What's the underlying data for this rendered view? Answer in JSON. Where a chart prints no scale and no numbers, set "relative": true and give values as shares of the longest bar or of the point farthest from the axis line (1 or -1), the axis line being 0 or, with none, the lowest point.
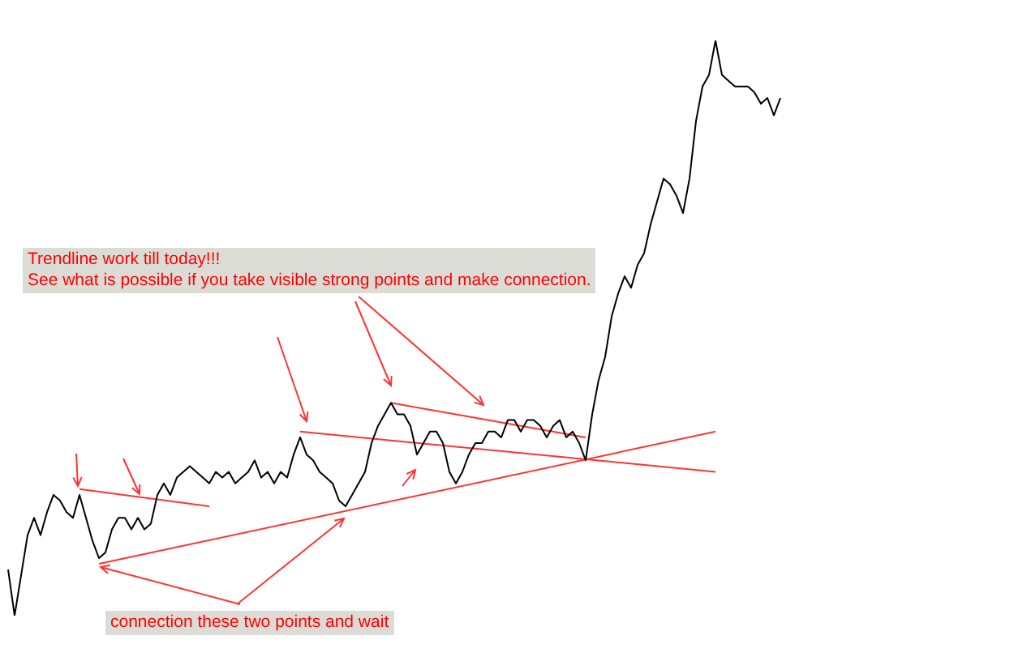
{
  "chart_data": {
    "type": "line",
    "relative": true,
    "legend": false,
    "marker": "none",
    "categories": [
      null,
      null,
      null,
      null,
      null,
      null,
      null,
      null,
      null,
      null,
      null,
      null,
      null,
      null,
      null,
      null,
      null,
      null,
      null,
      null,
      null,
      null,
      null,
      null,
      null,
      null,
      null,
      null,
      null,
      null,
      null,
      null,
      null,
      null,
      null,
      null,
      null,
      null,
      null,
      null,
      null,
      null,
      null,
      null,
      null,
      null,
      null,
      null,
      null,
      null,
      null,
      null,
      null,
      null,
      null,
      null,
      null,
      null,
      null,
      null,
      null,
      null,
      null,
      null,
      null,
      null,
      null,
      null,
      null,
      null,
      null,
      null,
      null,
      null,
      null,
      null,
      null,
      null,
      null,
      null,
      null,
      null,
      null,
      null,
      null,
      null,
      null,
      null,
      null,
      null,
      null,
      null,
      null,
      null,
      null,
      null,
      null,
      null,
      null,
      null,
      null,
      null,
      null,
      null,
      null,
      null,
      null,
      null,
      null,
      null,
      null,
      null,
      null,
      null,
      null,
      null,
      null,
      null,
      null,
      null
    ],
    "series": [
      {
        "color": "#000000",
        "values": [
          0.08,
          0,
          0.07,
          0.14,
          0.17,
          0.14,
          0.18,
          0.21,
          0.2,
          0.18,
          0.17,
          0.21,
          0.17,
          0.13,
          0.1,
          0.11,
          0.15,
          0.17,
          0.17,
          0.15,
          0.17,
          0.15,
          0.16,
          0.21,
          0.23,
          0.21,
          0.24,
          0.25,
          0.26,
          0.25,
          0.24,
          0.23,
          0.25,
          0.24,
          0.25,
          0.23,
          0.24,
          0.25,
          0.27,
          0.24,
          0.25,
          0.23,
          0.25,
          0.24,
          0.28,
          0.31,
          0.28,
          0.27,
          0.25,
          0.24,
          0.23,
          0.2,
          0.19,
          0.21,
          0.23,
          0.25,
          0.3,
          0.33,
          0.35,
          0.37,
          0.35,
          0.35,
          0.33,
          0.28,
          0.3,
          0.32,
          0.32,
          0.3,
          0.25,
          0.23,
          0.25,
          0.28,
          0.3,
          0.3,
          0.32,
          0.32,
          0.31,
          0.34,
          0.34,
          0.32,
          0.34,
          0.34,
          0.33,
          0.31,
          0.33,
          0.34,
          0.31,
          0.32,
          0.3,
          0.27,
          0.35,
          0.41,
          0.45,
          0.52,
          0.56,
          0.59,
          0.57,
          0.61,
          0.63,
          0.68,
          0.72,
          0.76,
          0.75,
          0.73,
          0.7,
          0.76,
          0.86,
          0.92,
          0.94,
          1,
          0.94,
          0.93,
          0.92,
          0.92,
          0.92,
          0.91,
          0.89,
          0.9,
          0.87,
          0.9
        ]
      },
      {
        "color": "#ff3333",
        "values": [
          null,
          null,
          null,
          null,
          null,
          null,
          null,
          null,
          null,
          null,
          null,
          0.22,
          null,
          null,
          null,
          null,
          null,
          null,
          null,
          null,
          null,
          null,
          null,
          null,
          null,
          null,
          null,
          null,
          null,
          null,
          null,
          0.19,
          null,
          null,
          null,
          null,
          null,
          null,
          null,
          null,
          null,
          null,
          null,
          null,
          null,
          null,
          null,
          null,
          null,
          null,
          null,
          null,
          null,
          null,
          null,
          null,
          null,
          null,
          null,
          null,
          null,
          null,
          null,
          null,
          null,
          null,
          null,
          null,
          null,
          null,
          null,
          null,
          null,
          null,
          null,
          null,
          null,
          null,
          null,
          null,
          null,
          null,
          null,
          null,
          null,
          null,
          null,
          null,
          null,
          null,
          null,
          null,
          null,
          null,
          null,
          null,
          null,
          null,
          null,
          null,
          null,
          null,
          null,
          null,
          null,
          null,
          null,
          null,
          null,
          null,
          null,
          null,
          null,
          null,
          null,
          null,
          null,
          null,
          null,
          null
        ]
      },
      {
        "color": "#ff3333",
        "values": [
          null,
          null,
          null,
          null,
          null,
          null,
          null,
          null,
          null,
          null,
          null,
          null,
          null,
          null,
          0.09,
          null,
          null,
          null,
          null,
          null,
          null,
          null,
          null,
          null,
          null,
          null,
          null,
          null,
          null,
          null,
          null,
          null,
          null,
          null,
          null,
          null,
          null,
          null,
          null,
          null,
          null,
          null,
          null,
          null,
          null,
          null,
          null,
          null,
          null,
          null,
          null,
          null,
          null,
          null,
          null,
          null,
          null,
          null,
          null,
          null,
          null,
          null,
          null,
          null,
          null,
          null,
          null,
          null,
          null,
          null,
          null,
          null,
          null,
          null,
          null,
          null,
          null,
          null,
          null,
          null,
          null,
          null,
          null,
          null,
          null,
          null,
          null,
          null,
          null,
          null,
          null,
          null,
          null,
          null,
          null,
          null,
          null,
          null,
          null,
          null,
          null,
          null,
          null,
          null,
          null,
          null,
          null,
          null,
          null,
          0.32,
          null,
          null,
          null,
          null,
          null,
          null,
          null,
          null,
          null,
          null
        ]
      },
      {
        "color": "#ff3333",
        "values": [
          null,
          null,
          null,
          null,
          null,
          null,
          null,
          null,
          null,
          null,
          null,
          null,
          null,
          null,
          null,
          null,
          null,
          null,
          null,
          null,
          null,
          null,
          null,
          null,
          null,
          null,
          null,
          null,
          null,
          null,
          null,
          null,
          null,
          null,
          null,
          null,
          null,
          null,
          null,
          null,
          null,
          null,
          null,
          null,
          null,
          0.32,
          null,
          null,
          null,
          null,
          null,
          null,
          null,
          null,
          null,
          null,
          null,
          null,
          null,
          null,
          null,
          null,
          null,
          null,
          null,
          null,
          null,
          null,
          null,
          null,
          null,
          null,
          null,
          null,
          null,
          null,
          null,
          null,
          null,
          null,
          null,
          null,
          null,
          null,
          null,
          null,
          null,
          null,
          null,
          null,
          null,
          null,
          null,
          null,
          null,
          null,
          null,
          null,
          null,
          null,
          null,
          null,
          null,
          null,
          null,
          null,
          null,
          null,
          null,
          0.25,
          null,
          null,
          null,
          null,
          null,
          null,
          null,
          null,
          null,
          null
        ]
      },
      {
        "color": "#ff3333",
        "values": [
          null,
          null,
          null,
          null,
          null,
          null,
          null,
          null,
          null,
          null,
          null,
          null,
          null,
          null,
          null,
          null,
          null,
          null,
          null,
          null,
          null,
          null,
          null,
          null,
          null,
          null,
          null,
          null,
          null,
          null,
          null,
          null,
          null,
          null,
          null,
          null,
          null,
          null,
          null,
          null,
          null,
          null,
          null,
          null,
          null,
          null,
          null,
          null,
          null,
          null,
          null,
          null,
          null,
          null,
          null,
          null,
          null,
          null,
          null,
          0.37,
          null,
          null,
          null,
          null,
          null,
          null,
          null,
          null,
          null,
          null,
          null,
          null,
          null,
          null,
          null,
          null,
          null,
          null,
          null,
          null,
          null,
          null,
          null,
          null,
          null,
          null,
          null,
          null,
          null,
          0.31,
          null,
          null,
          null,
          null,
          null,
          null,
          null,
          null,
          null,
          null,
          null,
          null,
          null,
          null,
          null,
          null,
          null,
          null,
          null,
          null,
          null,
          null,
          null,
          null,
          null,
          null,
          null,
          null,
          null,
          null
        ]
      }
    ],
    "annotations": [
      "Trendline work till today!!!\nSee what is possible if you take visible strong points and make connection.",
      "connection these two points and wait"
    ]
  }
}
